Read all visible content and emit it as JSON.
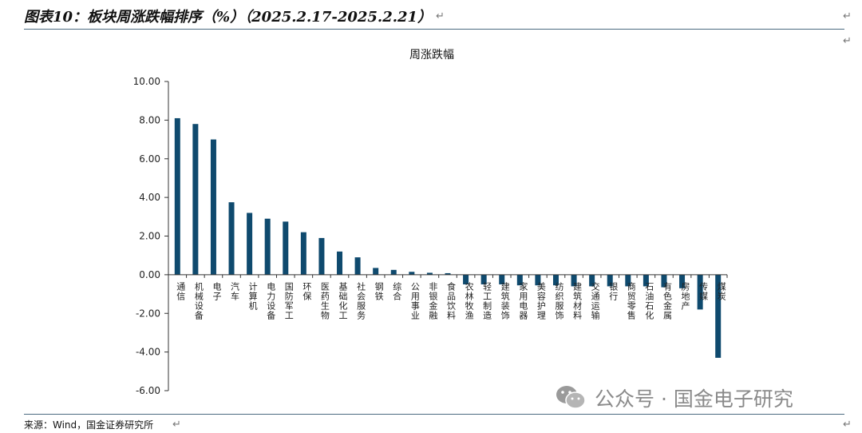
{
  "header": {
    "title": "图表10：板块周涨跌幅排序（%）（2025.2.17-2025.2.21）"
  },
  "footer": {
    "source": "来源：Wind，国金证券研究所"
  },
  "watermark": {
    "text": "公众号 · 国金电子研究",
    "icon": "wechat-icon"
  },
  "chart_data": {
    "type": "bar",
    "title": "周涨跌幅",
    "xlabel": "",
    "ylabel": "",
    "ylim": [
      -6,
      10
    ],
    "yticks": [
      "10.00",
      "8.00",
      "6.00",
      "4.00",
      "2.00",
      "0.00",
      "-2.00",
      "-4.00",
      "-6.00"
    ],
    "grid": false,
    "bar_color": "#0f4a6e",
    "categories": [
      "通信",
      "机械设备",
      "电子",
      "汽车",
      "计算机",
      "电力设备",
      "国防军工",
      "环保",
      "医药生物",
      "基础化工",
      "社会服务",
      "钢铁",
      "综合",
      "公用事业",
      "非银金融",
      "食品饮料",
      "农林牧渔",
      "轻工制造",
      "建筑装饰",
      "家用电器",
      "美容护理",
      "纺织服饰",
      "建筑材料",
      "交通运输",
      "银行",
      "商贸零售",
      "石油石化",
      "有色金属",
      "房地产",
      "传媒",
      "煤炭"
    ],
    "values": [
      8.1,
      7.8,
      7.0,
      3.75,
      3.2,
      2.9,
      2.75,
      2.2,
      1.9,
      1.2,
      0.9,
      0.35,
      0.25,
      0.15,
      0.1,
      0.08,
      -0.5,
      -0.5,
      -0.5,
      -0.55,
      -0.55,
      -0.55,
      -0.6,
      -0.6,
      -0.6,
      -0.6,
      -0.6,
      -0.65,
      -0.7,
      -1.8,
      -4.3
    ]
  }
}
